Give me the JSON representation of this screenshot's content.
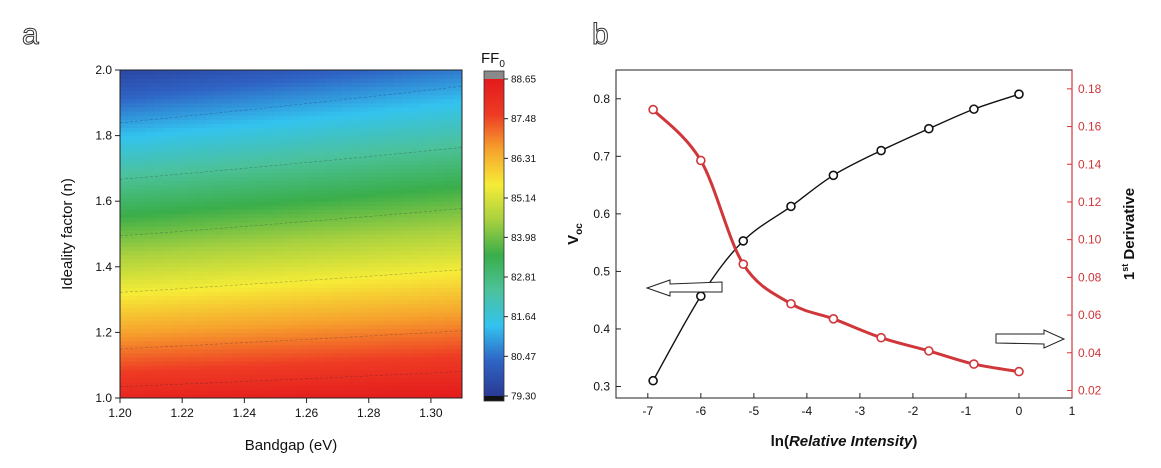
{
  "colors": {
    "colormap": [
      "#2a3a94",
      "#2f64c5",
      "#33c3ef",
      "#4cc29b",
      "#3aae4a",
      "#a8d13f",
      "#f6ec37",
      "#f6a22d",
      "#ee3b24",
      "#e31a1c"
    ],
    "series_black": "#111111",
    "series_red": "#d0363a",
    "arrow_fill": "#ffffff"
  },
  "chart_data": [
    {
      "panel": "a",
      "type": "heatmap",
      "xlabel": "Bandgap (eV)",
      "ylabel": "Ideality factor (n)",
      "xlim": [
        1.2,
        1.31
      ],
      "ylim": [
        1.0,
        2.0
      ],
      "x_ticks": [
        "1.20",
        "1.22",
        "1.24",
        "1.26",
        "1.28",
        "1.30"
      ],
      "y_ticks": [
        "1.0",
        "1.2",
        "1.4",
        "1.6",
        "1.8",
        "2.0"
      ],
      "colorbar": {
        "title": "FF",
        "title_sub": "0",
        "min": 79.3,
        "max": 88.65,
        "ticks": [
          "88.65",
          "87.48",
          "86.31",
          "85.14",
          "83.98",
          "82.81",
          "81.64",
          "80.47",
          "79.30"
        ]
      },
      "surface": {
        "ff_at_corner_1.20_1.0": 88.3,
        "ff_at_corner_1.20_2.0": 79.6,
        "ff_at_corner_1.31_1.0": 88.65,
        "ff_at_corner_1.31_2.0": 80.6
      }
    },
    {
      "panel": "b",
      "type": "line",
      "xlabel_prefix": "ln(",
      "xlabel_italic": "Relative Intensity",
      "xlabel_suffix": ")",
      "ylabel_main": "V",
      "ylabel_sub": "oc",
      "y2label_sup": "st",
      "y2label_pre": "1",
      "y2label_post": " Derivative",
      "xlim": [
        -7.6,
        1
      ],
      "ylim": [
        0.28,
        0.85
      ],
      "y2lim": [
        0.016,
        0.19
      ],
      "x_ticks": [
        "-7",
        "-6",
        "-5",
        "-4",
        "-3",
        "-2",
        "-1",
        "0",
        "1"
      ],
      "y_ticks": [
        "0.3",
        "0.4",
        "0.5",
        "0.6",
        "0.7",
        "0.8"
      ],
      "y2_ticks": [
        "0.02",
        "0.04",
        "0.06",
        "0.08",
        "0.10",
        "0.12",
        "0.14",
        "0.16",
        "0.18"
      ],
      "series": [
        {
          "axis": "left",
          "x": [
            -6.9,
            -6.0,
            -5.2,
            -4.3,
            -3.5,
            -2.6,
            -1.7,
            -0.85,
            0
          ],
          "y": [
            0.31,
            0.457,
            0.553,
            0.613,
            0.667,
            0.71,
            0.748,
            0.782,
            0.808
          ]
        },
        {
          "axis": "right",
          "x": [
            -6.9,
            -6.0,
            -5.2,
            -4.3,
            -3.5,
            -2.6,
            -1.7,
            -0.85,
            0
          ],
          "y": [
            0.169,
            0.142,
            0.087,
            0.066,
            0.058,
            0.048,
            0.041,
            0.034,
            0.03
          ]
        }
      ]
    }
  ],
  "panel_labels": {
    "a": "a",
    "b": "b"
  }
}
